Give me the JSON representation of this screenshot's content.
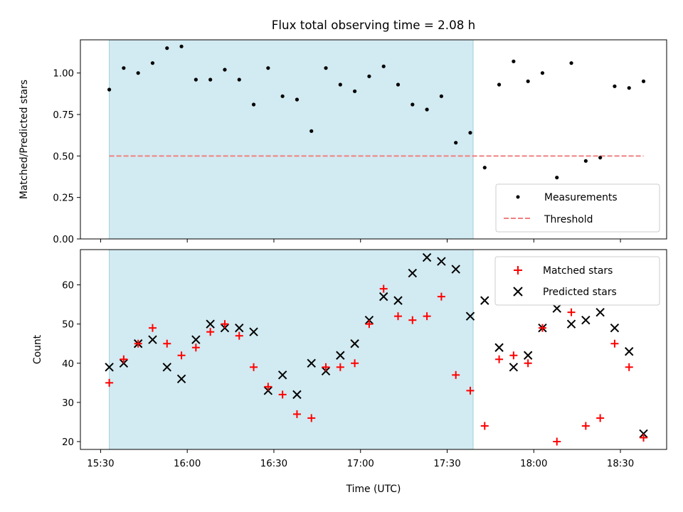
{
  "chart_data": [
    {
      "type": "scatter",
      "title": "Flux total observing time = 2.08 h",
      "xlabel": "",
      "ylabel": "Matched/Predicted stars",
      "ylim": [
        0,
        1.2
      ],
      "yticks": [
        "0.00",
        "0.25",
        "0.50",
        "0.75",
        "1.00"
      ],
      "ytick_values": [
        0,
        0.25,
        0.5,
        0.75,
        1.0
      ],
      "grid": false,
      "legend_position": "bottom-right",
      "shaded_span": {
        "start": "15:33",
        "end": "17:39",
        "color": "#add8e6"
      },
      "threshold": {
        "name": "Threshold",
        "value": 0.5,
        "x_start": "15:33",
        "x_end": "18:38",
        "color": "#f08080",
        "style": "dashed"
      },
      "series": [
        {
          "name": "Measurements",
          "color": "#000000",
          "marker": "dot",
          "x": [
            "15:33",
            "15:38",
            "15:43",
            "15:48",
            "15:53",
            "15:58",
            "16:03",
            "16:08",
            "16:13",
            "16:18",
            "16:23",
            "16:28",
            "16:33",
            "16:38",
            "16:43",
            "16:48",
            "16:53",
            "16:58",
            "17:03",
            "17:08",
            "17:13",
            "17:18",
            "17:23",
            "17:28",
            "17:33",
            "17:38",
            "17:43",
            "17:48",
            "17:53",
            "17:58",
            "18:03",
            "18:08",
            "18:13",
            "18:18",
            "18:23",
            "18:28",
            "18:33",
            "18:38"
          ],
          "y": [
            0.9,
            1.03,
            1.0,
            1.06,
            1.15,
            1.16,
            0.96,
            0.96,
            1.02,
            0.96,
            0.81,
            1.03,
            0.86,
            0.84,
            0.65,
            1.03,
            0.93,
            0.89,
            0.98,
            1.04,
            0.93,
            0.81,
            0.78,
            0.86,
            0.58,
            0.64,
            0.43,
            0.93,
            1.07,
            0.95,
            1.0,
            0.37,
            1.06,
            0.47,
            0.49,
            0.92,
            0.91,
            0.95
          ]
        }
      ]
    },
    {
      "type": "scatter",
      "title": "",
      "xlabel": "Time (UTC)",
      "ylabel": "Count",
      "ylim": [
        18,
        69
      ],
      "yticks": [
        "20",
        "30",
        "40",
        "50",
        "60"
      ],
      "ytick_values": [
        20,
        30,
        40,
        50,
        60
      ],
      "xlim": [
        "15:23",
        "18:46"
      ],
      "xticks": [
        "15:30",
        "16:00",
        "16:30",
        "17:00",
        "17:30",
        "18:00",
        "18:30"
      ],
      "grid": false,
      "legend_position": "top-right",
      "shaded_span": {
        "start": "15:33",
        "end": "17:39",
        "color": "#add8e6"
      },
      "series": [
        {
          "name": "Matched stars",
          "color": "#ff0000",
          "marker": "plus",
          "x": [
            "15:33",
            "15:38",
            "15:43",
            "15:48",
            "15:53",
            "15:58",
            "16:03",
            "16:08",
            "16:13",
            "16:18",
            "16:23",
            "16:28",
            "16:33",
            "16:38",
            "16:43",
            "16:48",
            "16:53",
            "16:58",
            "17:03",
            "17:08",
            "17:13",
            "17:18",
            "17:23",
            "17:28",
            "17:33",
            "17:38",
            "17:43",
            "17:48",
            "17:53",
            "17:58",
            "18:03",
            "18:08",
            "18:13",
            "18:18",
            "18:23",
            "18:28",
            "18:33",
            "18:38"
          ],
          "y": [
            35,
            41,
            45,
            49,
            45,
            42,
            44,
            48,
            50,
            47,
            39,
            34,
            32,
            27,
            26,
            39,
            39,
            40,
            50,
            59,
            52,
            51,
            52,
            57,
            37,
            33,
            24,
            41,
            42,
            40,
            49,
            20,
            53,
            24,
            26,
            45,
            39,
            21
          ]
        },
        {
          "name": "Predicted stars",
          "color": "#000000",
          "marker": "x",
          "x": [
            "15:33",
            "15:38",
            "15:43",
            "15:48",
            "15:53",
            "15:58",
            "16:03",
            "16:08",
            "16:13",
            "16:18",
            "16:23",
            "16:28",
            "16:33",
            "16:38",
            "16:43",
            "16:48",
            "16:53",
            "16:58",
            "17:03",
            "17:08",
            "17:13",
            "17:18",
            "17:23",
            "17:28",
            "17:33",
            "17:38",
            "17:43",
            "17:48",
            "17:53",
            "17:58",
            "18:03",
            "18:08",
            "18:13",
            "18:18",
            "18:23",
            "18:28",
            "18:33",
            "18:38"
          ],
          "y": [
            39,
            40,
            45,
            46,
            39,
            36,
            46,
            50,
            49,
            49,
            48,
            33,
            37,
            32,
            40,
            38,
            42,
            45,
            51,
            57,
            56,
            63,
            67,
            66,
            64,
            52,
            56,
            44,
            39,
            42,
            49,
            54,
            50,
            51,
            53,
            49,
            43,
            22
          ]
        }
      ]
    }
  ]
}
